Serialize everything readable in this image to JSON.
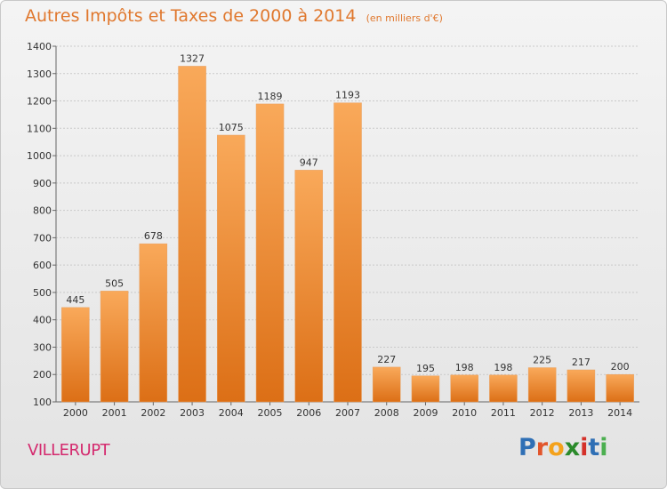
{
  "title": {
    "main": "Autres Impôts et Taxes de 2000 à 2014",
    "unit": "(en milliers d'€)"
  },
  "commune": "VILLERUPT",
  "brand": {
    "letters": [
      "P",
      "r",
      "o",
      "x",
      "i",
      "t",
      "i"
    ],
    "colors": [
      "#2f6fb5",
      "#e2552b",
      "#f4a21c",
      "#2b8a2b",
      "#d4312a",
      "#2f6fb5",
      "#4caf50"
    ]
  },
  "colors": {
    "bar_top": "#f9a95a",
    "bar_bottom": "#dc6f16",
    "title": "#e0782e",
    "commune": "#d42a6e"
  },
  "chart_data": {
    "type": "bar",
    "categories": [
      "2000",
      "2001",
      "2002",
      "2003",
      "2004",
      "2005",
      "2006",
      "2007",
      "2008",
      "2009",
      "2010",
      "2011",
      "2012",
      "2013",
      "2014"
    ],
    "values": [
      445,
      505,
      678,
      1327,
      1075,
      1189,
      947,
      1193,
      227,
      195,
      198,
      198,
      225,
      217,
      200
    ],
    "data_labels": [
      "445",
      "505",
      "678",
      "1327",
      "1075",
      "1189",
      "947",
      "1193",
      "227",
      "195",
      "198",
      "198",
      "225",
      "217",
      "200"
    ],
    "yticks": [
      100,
      200,
      300,
      400,
      500,
      600,
      700,
      800,
      900,
      1000,
      1100,
      1200,
      1300,
      1400
    ],
    "ylim": [
      100,
      1400
    ],
    "grid": "horizontal dashed"
  }
}
